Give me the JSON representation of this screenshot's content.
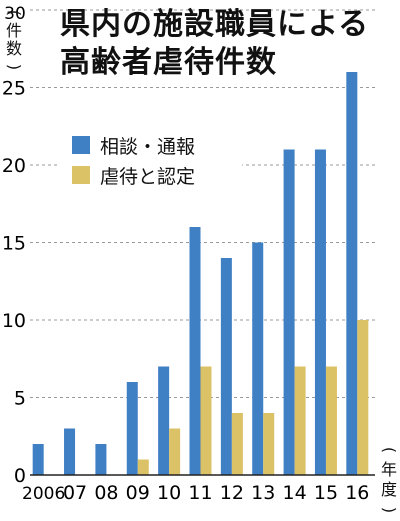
{
  "chart_data": {
    "type": "bar",
    "title": "県内の施設職員による高齢者虐待件数",
    "title_lines": [
      "県内の施設職員による",
      "高齢者虐待件数"
    ],
    "ylabel": "（件数）",
    "ylabel_chars": [
      "(",
      "件",
      "数",
      ")"
    ],
    "xlabel": "（年度）",
    "xlabel_chars": [
      "(",
      "年",
      "度",
      ")"
    ],
    "categories": [
      "2006",
      "07",
      "08",
      "09",
      "10",
      "11",
      "12",
      "13",
      "14",
      "15",
      "16"
    ],
    "series": [
      {
        "name": "相談・通報",
        "color": "#3f7fc4",
        "values": [
          2,
          3,
          2,
          6,
          7,
          16,
          14,
          15,
          21,
          21,
          26
        ]
      },
      {
        "name": "虐待と認定",
        "color": "#dcc266",
        "values": [
          0,
          0,
          0,
          1,
          3,
          7,
          4,
          4,
          7,
          7,
          10
        ]
      }
    ],
    "ylim": [
      0,
      30
    ],
    "yticks": [
      "0",
      "5",
      "10",
      "15",
      "20",
      "25",
      "30"
    ],
    "grid": true,
    "legend_position": "top-left"
  }
}
